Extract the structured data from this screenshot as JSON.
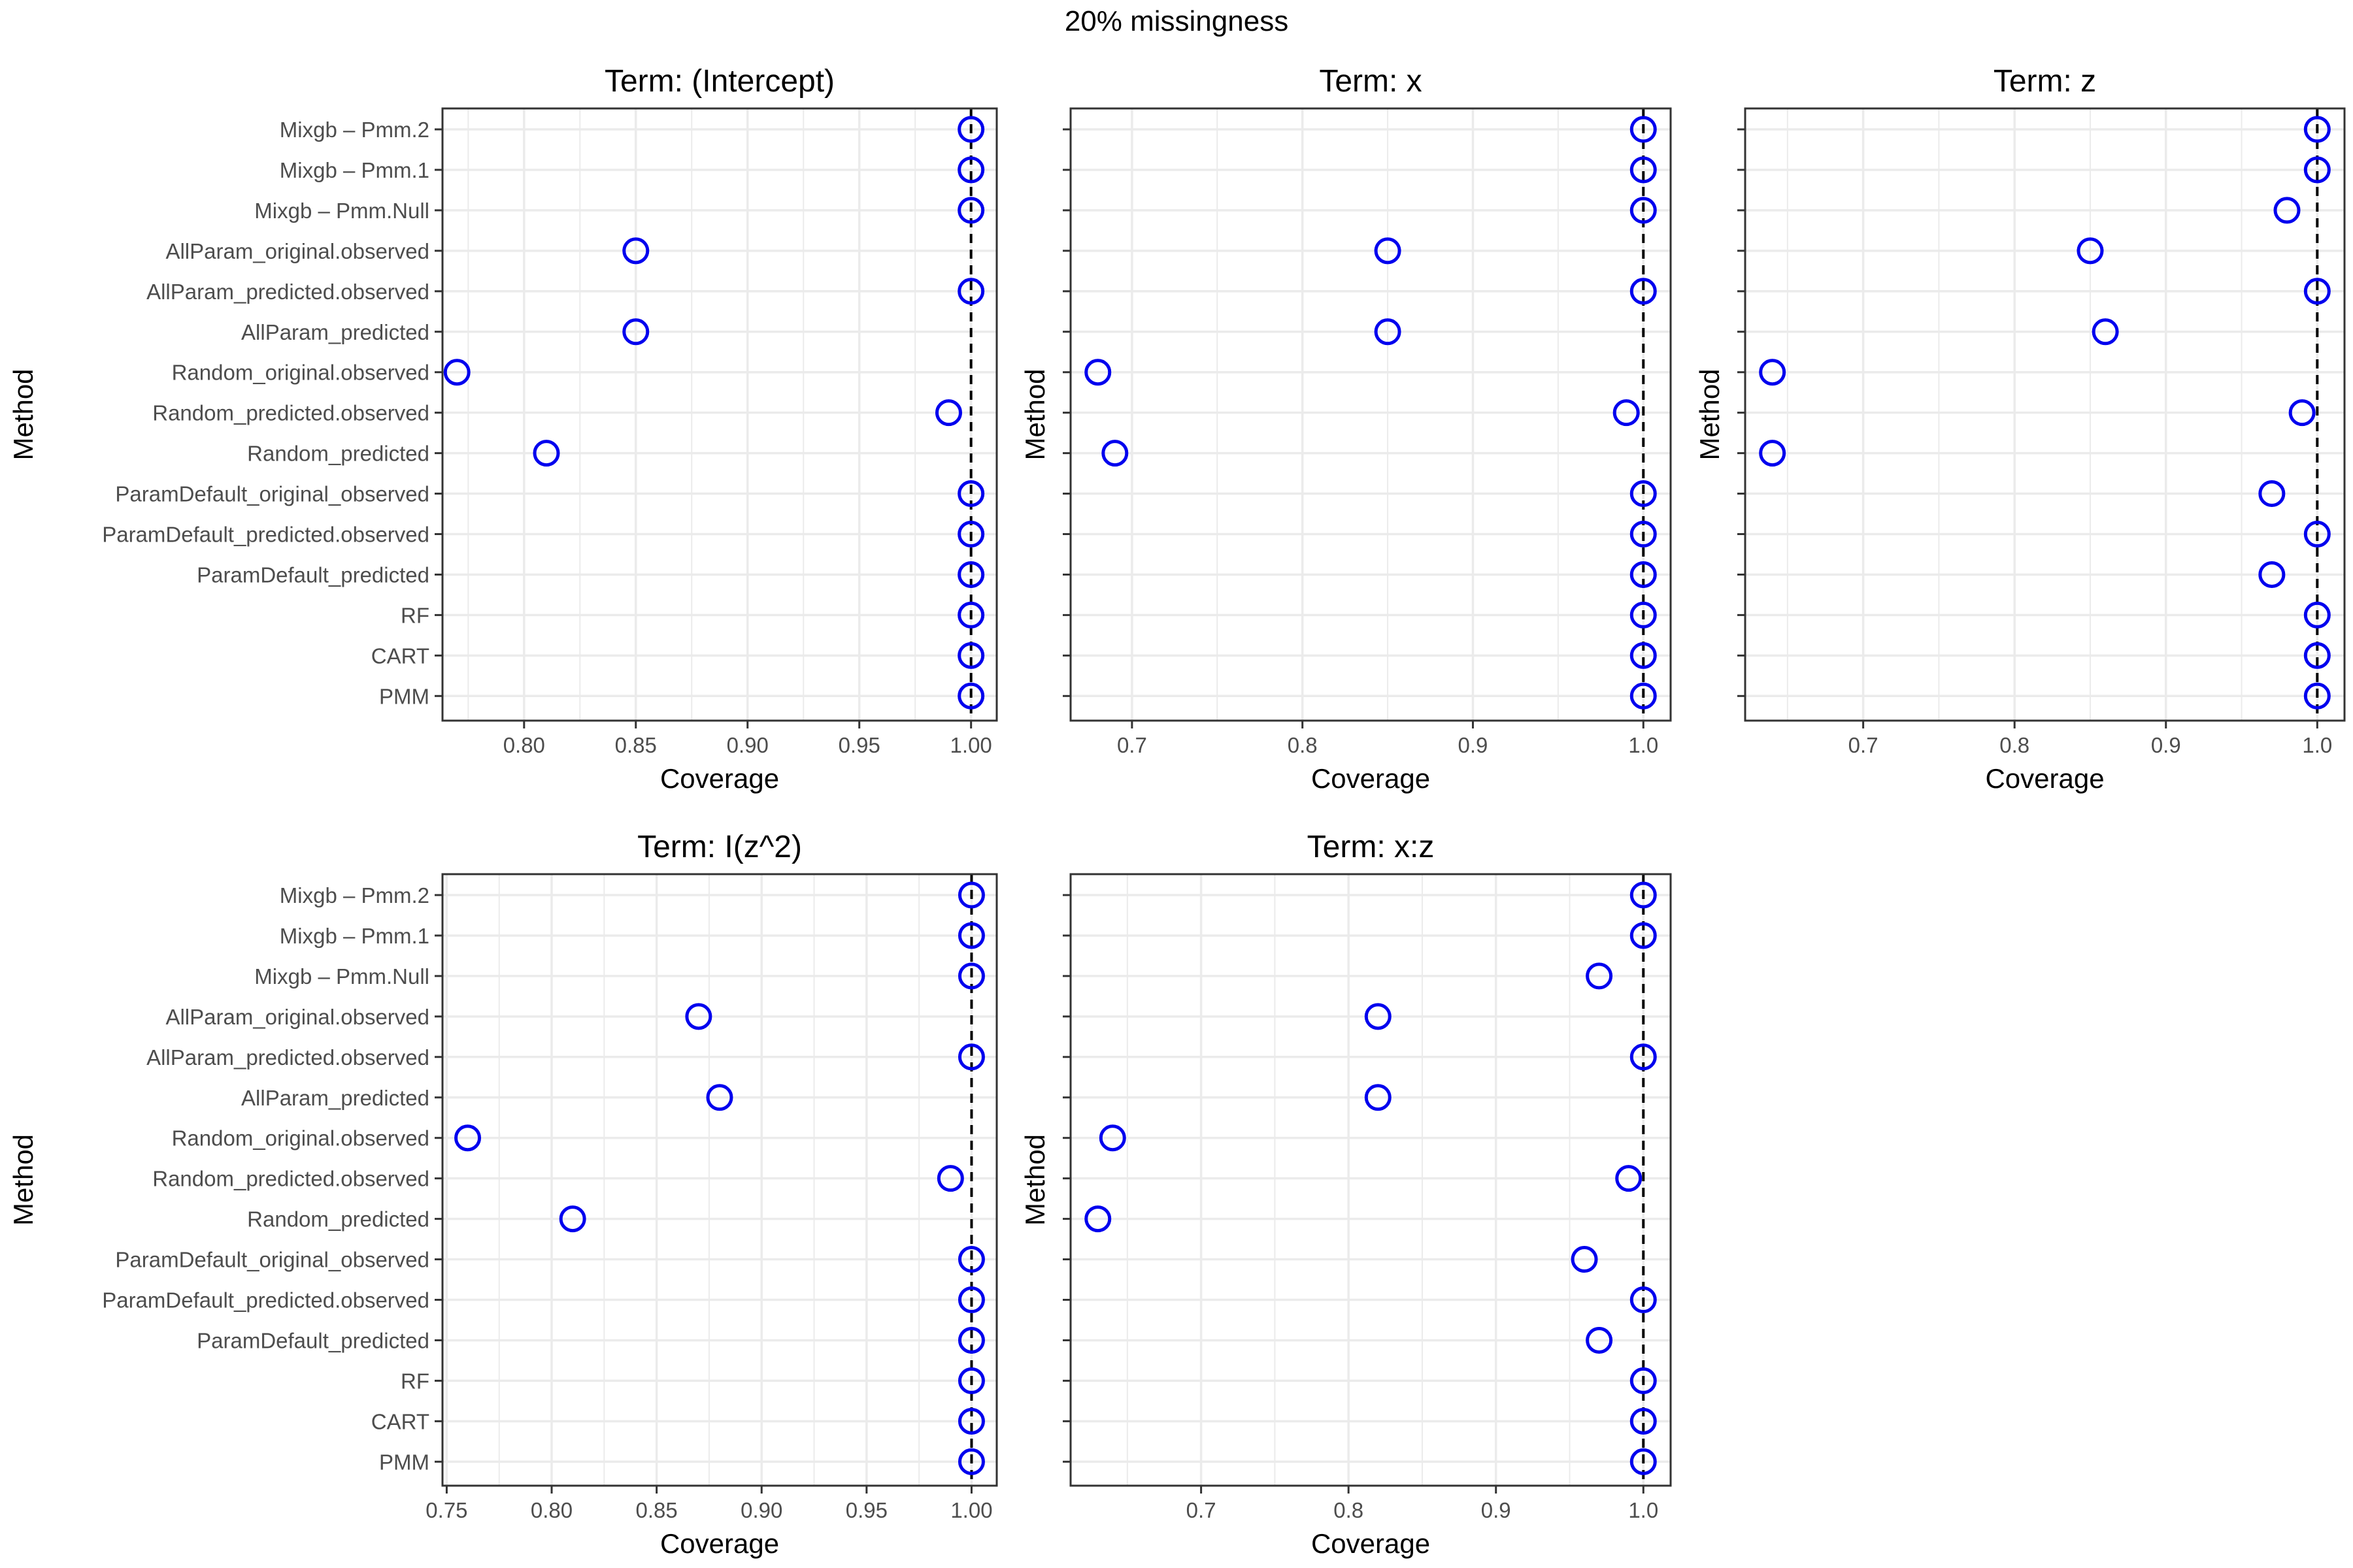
{
  "title": "20% missingness",
  "colors": {
    "point": "#0000EE",
    "panel_border": "#333333",
    "grid": "#EBEBEB",
    "reference_line": "#000000",
    "tick_text": "#4D4D4D",
    "axis_title": "#000000"
  },
  "chart_data": [
    {
      "type": "scatter",
      "title": "Term: (Intercept)",
      "xlabel": "Coverage",
      "ylabel": "Method",
      "categories": [
        "Mixgb – Pmm.2",
        "Mixgb – Pmm.1",
        "Mixgb – Pmm.Null",
        "AllParam_original.observed",
        "AllParam_predicted.observed",
        "AllParam_predicted",
        "Random_original.observed",
        "Random_predicted.observed",
        "Random_predicted",
        "ParamDefault_original_observed",
        "ParamDefault_predicted.observed",
        "ParamDefault_predicted",
        "RF",
        "CART",
        "PMM"
      ],
      "values": [
        1.0,
        1.0,
        1.0,
        0.85,
        1.0,
        0.85,
        0.77,
        0.99,
        0.81,
        1.0,
        1.0,
        1.0,
        1.0,
        1.0,
        1.0
      ],
      "xlim": [
        0.7635,
        1.0115
      ],
      "xticks": [
        0.8,
        0.85,
        0.9,
        0.95,
        1.0
      ],
      "xtick_labels": [
        "0.80",
        "0.85",
        "0.90",
        "0.95",
        "1.00"
      ],
      "reference_line": 1.0,
      "show_y_labels": true,
      "grid": true
    },
    {
      "type": "scatter",
      "title": "Term: x",
      "xlabel": "Coverage",
      "ylabel": "Method",
      "categories": [
        "Mixgb – Pmm.2",
        "Mixgb – Pmm.1",
        "Mixgb – Pmm.Null",
        "AllParam_original.observed",
        "AllParam_predicted.observed",
        "AllParam_predicted",
        "Random_original.observed",
        "Random_predicted.observed",
        "Random_predicted",
        "ParamDefault_original_observed",
        "ParamDefault_predicted.observed",
        "ParamDefault_predicted",
        "RF",
        "CART",
        "PMM"
      ],
      "values": [
        1.0,
        1.0,
        1.0,
        0.85,
        1.0,
        0.85,
        0.68,
        0.99,
        0.69,
        1.0,
        1.0,
        1.0,
        1.0,
        1.0,
        1.0
      ],
      "xlim": [
        0.664,
        1.016
      ],
      "xticks": [
        0.7,
        0.8,
        0.9,
        1.0
      ],
      "xtick_labels": [
        "0.7",
        "0.8",
        "0.9",
        "1.0"
      ],
      "reference_line": 1.0,
      "show_y_labels": false,
      "grid": true
    },
    {
      "type": "scatter",
      "title": "Term: z",
      "xlabel": "Coverage",
      "ylabel": "Method",
      "categories": [
        "Mixgb – Pmm.2",
        "Mixgb – Pmm.1",
        "Mixgb – Pmm.Null",
        "AllParam_original.observed",
        "AllParam_predicted.observed",
        "AllParam_predicted",
        "Random_original.observed",
        "Random_predicted.observed",
        "Random_predicted",
        "ParamDefault_original_observed",
        "ParamDefault_predicted.observed",
        "ParamDefault_predicted",
        "RF",
        "CART",
        "PMM"
      ],
      "values": [
        1.0,
        1.0,
        0.98,
        0.85,
        1.0,
        0.86,
        0.64,
        0.99,
        0.64,
        0.97,
        1.0,
        0.97,
        1.0,
        1.0,
        1.0
      ],
      "xlim": [
        0.622,
        1.018
      ],
      "xticks": [
        0.7,
        0.8,
        0.9,
        1.0
      ],
      "xtick_labels": [
        "0.7",
        "0.8",
        "0.9",
        "1.0"
      ],
      "reference_line": 1.0,
      "show_y_labels": false,
      "grid": true
    },
    {
      "type": "scatter",
      "title": "Term: I(z^2)",
      "xlabel": "Coverage",
      "ylabel": "Method",
      "categories": [
        "Mixgb – Pmm.2",
        "Mixgb – Pmm.1",
        "Mixgb – Pmm.Null",
        "AllParam_original.observed",
        "AllParam_predicted.observed",
        "AllParam_predicted",
        "Random_original.observed",
        "Random_predicted.observed",
        "Random_predicted",
        "ParamDefault_original_observed",
        "ParamDefault_predicted.observed",
        "ParamDefault_predicted",
        "RF",
        "CART",
        "PMM"
      ],
      "values": [
        1.0,
        1.0,
        1.0,
        0.87,
        1.0,
        0.88,
        0.76,
        0.99,
        0.81,
        1.0,
        1.0,
        1.0,
        1.0,
        1.0,
        1.0
      ],
      "xlim": [
        0.748,
        1.012
      ],
      "xticks": [
        0.75,
        0.8,
        0.85,
        0.9,
        0.95,
        1.0
      ],
      "xtick_labels": [
        "0.75",
        "0.80",
        "0.85",
        "0.90",
        "0.95",
        "1.00"
      ],
      "reference_line": 1.0,
      "show_y_labels": true,
      "grid": true
    },
    {
      "type": "scatter",
      "title": "Term: x:z",
      "xlabel": "Coverage",
      "ylabel": "Method",
      "categories": [
        "Mixgb – Pmm.2",
        "Mixgb – Pmm.1",
        "Mixgb – Pmm.Null",
        "AllParam_original.observed",
        "AllParam_predicted.observed",
        "AllParam_predicted",
        "Random_original.observed",
        "Random_predicted.observed",
        "Random_predicted",
        "ParamDefault_original_observed",
        "ParamDefault_predicted.observed",
        "ParamDefault_predicted",
        "RF",
        "CART",
        "PMM"
      ],
      "values": [
        1.0,
        1.0,
        0.97,
        0.82,
        1.0,
        0.82,
        0.64,
        0.99,
        0.63,
        0.96,
        1.0,
        0.97,
        1.0,
        1.0,
        1.0
      ],
      "xlim": [
        0.6115,
        1.0185
      ],
      "xticks": [
        0.7,
        0.8,
        0.9,
        1.0
      ],
      "xtick_labels": [
        "0.7",
        "0.8",
        "0.9",
        "1.0"
      ],
      "reference_line": 1.0,
      "show_y_labels": false,
      "grid": true
    }
  ]
}
